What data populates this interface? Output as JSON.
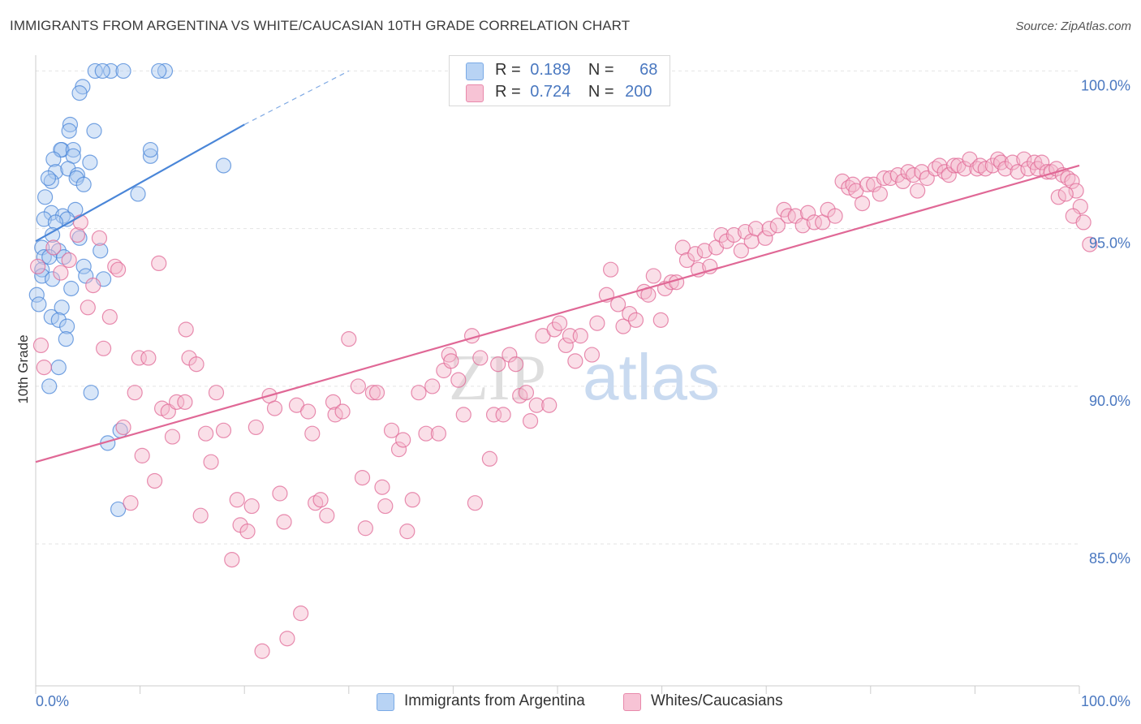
{
  "title": "IMMIGRANTS FROM ARGENTINA VS WHITE/CAUCASIAN 10TH GRADE CORRELATION CHART",
  "source": "Source: ZipAtlas.com",
  "watermark": {
    "zip": "ZIP",
    "atlas": "atlas"
  },
  "legend_top": [
    {
      "r_label": "R =",
      "r_value": "0.189",
      "n_label": "N =",
      "n_value": "68",
      "color": "#7aaae6",
      "fill": "#b8d3f4"
    },
    {
      "r_label": "R =",
      "r_value": "0.724",
      "n_label": "N =",
      "n_value": "200",
      "color": "#e889ab",
      "fill": "#f7c3d5"
    }
  ],
  "legend_bottom": [
    {
      "label": "Immigrants from Argentina",
      "color": "#7aaae6",
      "fill": "#b8d3f4"
    },
    {
      "label": "Whites/Caucasians",
      "color": "#e889ab",
      "fill": "#f7c3d5"
    }
  ],
  "chart_data": {
    "type": "scatter",
    "title": "IMMIGRANTS FROM ARGENTINA VS WHITE/CAUCASIAN 10TH GRADE CORRELATION CHART",
    "xlabel": "",
    "ylabel": "10th Grade",
    "xlim": [
      0,
      100
    ],
    "ylim": [
      80.5,
      100.5
    ],
    "x_tick_labels": [
      "0.0%",
      "100.0%"
    ],
    "y_ticks": [
      85,
      90,
      95,
      100
    ],
    "y_tick_labels": [
      "85.0%",
      "90.0%",
      "95.0%",
      "100.0%"
    ],
    "grid": true,
    "legend_position": "top-center",
    "series": [
      {
        "name": "Immigrants from Argentina",
        "color": "#4a86d8",
        "fill": "#a9c8f0",
        "trend": {
          "x": [
            0,
            20
          ],
          "y": [
            94.6,
            98.3
          ],
          "extend_to_x": 30,
          "extend_to_y": 100.0
        },
        "points": [
          [
            7.2,
            100.0
          ],
          [
            5.7,
            100.0
          ],
          [
            8.4,
            100.0
          ],
          [
            6.4,
            100.0
          ],
          [
            12.4,
            100.0
          ],
          [
            11.8,
            100.0
          ],
          [
            4.5,
            99.5
          ],
          [
            4.2,
            99.3
          ],
          [
            3.3,
            98.3
          ],
          [
            3.2,
            98.1
          ],
          [
            5.6,
            98.1
          ],
          [
            2.5,
            97.5
          ],
          [
            2.4,
            97.5
          ],
          [
            3.6,
            97.5
          ],
          [
            1.7,
            97.2
          ],
          [
            3.6,
            97.3
          ],
          [
            11.0,
            97.3
          ],
          [
            11.0,
            97.5
          ],
          [
            5.2,
            97.1
          ],
          [
            18.0,
            97.0
          ],
          [
            1.9,
            96.8
          ],
          [
            3.1,
            96.9
          ],
          [
            4.0,
            96.7
          ],
          [
            3.9,
            96.6
          ],
          [
            1.5,
            96.5
          ],
          [
            1.2,
            96.6
          ],
          [
            4.6,
            96.4
          ],
          [
            9.8,
            96.1
          ],
          [
            0.9,
            96.0
          ],
          [
            3.8,
            95.6
          ],
          [
            1.5,
            95.5
          ],
          [
            2.6,
            95.4
          ],
          [
            0.8,
            95.3
          ],
          [
            3.0,
            95.3
          ],
          [
            1.9,
            95.2
          ],
          [
            1.6,
            94.8
          ],
          [
            4.2,
            94.7
          ],
          [
            0.6,
            94.4
          ],
          [
            2.2,
            94.3
          ],
          [
            6.2,
            94.3
          ],
          [
            0.8,
            94.1
          ],
          [
            1.3,
            94.1
          ],
          [
            2.7,
            94.1
          ],
          [
            4.6,
            93.8
          ],
          [
            0.6,
            93.7
          ],
          [
            0.6,
            93.5
          ],
          [
            1.6,
            93.4
          ],
          [
            4.8,
            93.5
          ],
          [
            6.5,
            93.4
          ],
          [
            3.4,
            93.1
          ],
          [
            0.1,
            92.9
          ],
          [
            0.3,
            92.6
          ],
          [
            2.5,
            92.5
          ],
          [
            1.5,
            92.2
          ],
          [
            2.2,
            92.1
          ],
          [
            3.0,
            91.9
          ],
          [
            2.9,
            91.5
          ],
          [
            2.2,
            90.6
          ],
          [
            1.3,
            90.0
          ],
          [
            5.3,
            89.8
          ],
          [
            8.1,
            88.6
          ],
          [
            6.9,
            88.2
          ],
          [
            7.9,
            86.1
          ]
        ]
      },
      {
        "name": "Whites/Caucasians",
        "color": "#e06896",
        "fill": "#f5b8cd",
        "trend": {
          "x": [
            0,
            100
          ],
          "y": [
            87.6,
            97.0
          ]
        },
        "points": [
          [
            0.2,
            93.8
          ],
          [
            0.5,
            91.3
          ],
          [
            0.8,
            90.6
          ],
          [
            1.7,
            94.4
          ],
          [
            2.4,
            93.6
          ],
          [
            3.2,
            94.0
          ],
          [
            4.0,
            94.8
          ],
          [
            4.3,
            95.2
          ],
          [
            5.5,
            93.2
          ],
          [
            5.0,
            92.5
          ],
          [
            6.1,
            94.7
          ],
          [
            6.5,
            91.2
          ],
          [
            7.1,
            92.2
          ],
          [
            7.6,
            93.8
          ],
          [
            7.9,
            93.7
          ],
          [
            8.4,
            88.7
          ],
          [
            9.1,
            86.3
          ],
          [
            9.5,
            89.8
          ],
          [
            9.9,
            90.9
          ],
          [
            10.2,
            87.8
          ],
          [
            10.8,
            90.9
          ],
          [
            11.4,
            87.0
          ],
          [
            11.8,
            93.9
          ],
          [
            12.1,
            89.3
          ],
          [
            12.7,
            89.2
          ],
          [
            13.1,
            88.4
          ],
          [
            13.5,
            89.5
          ],
          [
            14.3,
            89.5
          ],
          [
            14.4,
            91.8
          ],
          [
            14.7,
            90.9
          ],
          [
            15.4,
            90.7
          ],
          [
            15.8,
            85.9
          ],
          [
            16.3,
            88.5
          ],
          [
            16.8,
            87.6
          ],
          [
            17.3,
            89.8
          ],
          [
            18.0,
            88.6
          ],
          [
            18.8,
            84.5
          ],
          [
            19.3,
            86.4
          ],
          [
            19.6,
            85.6
          ],
          [
            20.3,
            85.4
          ],
          [
            20.7,
            86.2
          ],
          [
            21.1,
            88.7
          ],
          [
            21.7,
            81.6
          ],
          [
            22.4,
            89.7
          ],
          [
            22.9,
            89.3
          ],
          [
            23.4,
            86.6
          ],
          [
            23.8,
            85.7
          ],
          [
            24.1,
            82.0
          ],
          [
            25.0,
            89.4
          ],
          [
            25.4,
            82.8
          ],
          [
            26.1,
            89.2
          ],
          [
            26.5,
            88.5
          ],
          [
            26.8,
            86.3
          ],
          [
            27.3,
            86.4
          ],
          [
            27.9,
            85.9
          ],
          [
            28.5,
            89.5
          ],
          [
            28.7,
            89.1
          ],
          [
            29.4,
            89.2
          ],
          [
            30.0,
            91.5
          ],
          [
            30.9,
            90.0
          ],
          [
            31.3,
            87.1
          ],
          [
            31.6,
            85.5
          ],
          [
            32.3,
            89.8
          ],
          [
            32.7,
            89.8
          ],
          [
            33.2,
            86.8
          ],
          [
            33.5,
            86.2
          ],
          [
            34.1,
            88.6
          ],
          [
            34.8,
            88.0
          ],
          [
            35.2,
            88.3
          ],
          [
            35.6,
            85.4
          ],
          [
            36.1,
            86.4
          ],
          [
            36.7,
            89.8
          ],
          [
            37.4,
            88.5
          ],
          [
            38.0,
            90.0
          ],
          [
            38.6,
            88.5
          ],
          [
            39.1,
            90.5
          ],
          [
            39.6,
            91.0
          ],
          [
            39.8,
            90.8
          ],
          [
            40.5,
            90.2
          ],
          [
            41.0,
            89.1
          ],
          [
            41.8,
            91.6
          ],
          [
            42.1,
            86.3
          ],
          [
            42.6,
            90.9
          ],
          [
            43.5,
            87.7
          ],
          [
            43.9,
            89.1
          ],
          [
            44.3,
            90.7
          ],
          [
            44.8,
            89.1
          ],
          [
            45.4,
            91.0
          ],
          [
            46.0,
            90.7
          ],
          [
            46.4,
            89.7
          ],
          [
            47.0,
            89.8
          ],
          [
            47.4,
            88.9
          ],
          [
            48.0,
            89.4
          ],
          [
            48.6,
            91.6
          ],
          [
            49.2,
            89.4
          ],
          [
            49.7,
            91.8
          ],
          [
            50.2,
            92.0
          ],
          [
            50.8,
            91.3
          ],
          [
            51.2,
            91.6
          ],
          [
            51.7,
            90.8
          ],
          [
            52.2,
            91.6
          ],
          [
            53.3,
            91.0
          ],
          [
            53.8,
            92.0
          ],
          [
            54.7,
            92.9
          ],
          [
            55.1,
            93.7
          ],
          [
            55.8,
            92.6
          ],
          [
            56.3,
            91.9
          ],
          [
            56.9,
            92.3
          ],
          [
            57.5,
            92.1
          ],
          [
            58.3,
            93.0
          ],
          [
            58.7,
            92.9
          ],
          [
            59.2,
            93.5
          ],
          [
            59.9,
            92.1
          ],
          [
            60.3,
            93.1
          ],
          [
            60.9,
            93.3
          ],
          [
            61.4,
            93.3
          ],
          [
            62.0,
            94.4
          ],
          [
            62.4,
            94.0
          ],
          [
            63.2,
            94.2
          ],
          [
            63.5,
            93.7
          ],
          [
            64.1,
            94.3
          ],
          [
            64.6,
            93.8
          ],
          [
            65.2,
            94.4
          ],
          [
            65.7,
            94.8
          ],
          [
            66.2,
            94.6
          ],
          [
            66.9,
            94.8
          ],
          [
            67.6,
            94.3
          ],
          [
            68.0,
            94.9
          ],
          [
            68.6,
            94.6
          ],
          [
            69.0,
            95.0
          ],
          [
            69.9,
            94.7
          ],
          [
            70.3,
            95.0
          ],
          [
            71.1,
            95.1
          ],
          [
            71.7,
            95.6
          ],
          [
            72.1,
            95.4
          ],
          [
            72.8,
            95.4
          ],
          [
            73.5,
            95.1
          ],
          [
            74.0,
            95.5
          ],
          [
            74.6,
            95.2
          ],
          [
            75.4,
            95.2
          ],
          [
            75.9,
            95.6
          ],
          [
            76.6,
            95.4
          ],
          [
            77.3,
            96.5
          ],
          [
            77.9,
            96.3
          ],
          [
            78.3,
            96.4
          ],
          [
            78.6,
            96.2
          ],
          [
            79.2,
            95.8
          ],
          [
            79.7,
            96.4
          ],
          [
            80.3,
            96.4
          ],
          [
            80.9,
            96.1
          ],
          [
            81.3,
            96.6
          ],
          [
            81.9,
            96.6
          ],
          [
            82.6,
            96.7
          ],
          [
            83.1,
            96.5
          ],
          [
            83.6,
            96.8
          ],
          [
            84.1,
            96.7
          ],
          [
            84.5,
            96.2
          ],
          [
            84.9,
            96.8
          ],
          [
            85.4,
            96.6
          ],
          [
            86.2,
            96.9
          ],
          [
            86.6,
            97.0
          ],
          [
            87.1,
            96.8
          ],
          [
            87.5,
            96.7
          ],
          [
            88.0,
            97.0
          ],
          [
            88.4,
            97.0
          ],
          [
            89.0,
            96.9
          ],
          [
            89.5,
            97.2
          ],
          [
            90.2,
            96.9
          ],
          [
            90.5,
            97.0
          ],
          [
            91.0,
            96.9
          ],
          [
            91.7,
            97.0
          ],
          [
            92.2,
            97.2
          ],
          [
            92.5,
            97.1
          ],
          [
            92.9,
            96.9
          ],
          [
            93.6,
            97.1
          ],
          [
            94.1,
            96.8
          ],
          [
            94.7,
            97.2
          ],
          [
            95.1,
            96.9
          ],
          [
            95.7,
            97.1
          ],
          [
            96.0,
            96.9
          ],
          [
            96.4,
            97.1
          ],
          [
            96.9,
            96.8
          ],
          [
            97.3,
            96.8
          ],
          [
            97.8,
            96.9
          ],
          [
            98.4,
            96.7
          ],
          [
            98.9,
            96.6
          ],
          [
            99.3,
            96.5
          ],
          [
            99.7,
            96.2
          ],
          [
            100.1,
            95.7
          ],
          [
            98.0,
            96.0
          ],
          [
            98.7,
            96.1
          ],
          [
            99.4,
            95.4
          ],
          [
            100.4,
            95.2
          ],
          [
            101.0,
            94.5
          ]
        ]
      }
    ]
  }
}
